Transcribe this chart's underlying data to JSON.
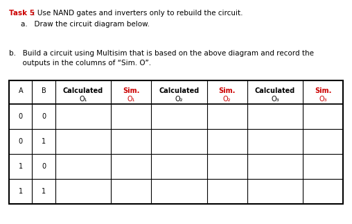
{
  "title_task": "Task 5",
  "title_rest": ": Use NAND gates and inverters only to rebuild the circuit.",
  "sub_a": "a.   Draw the circuit diagram below.",
  "sub_b_line1": "b.   Build a circuit using Multisim that is based on the above diagram and record the",
  "sub_b_line2": "      outputs in the columns of “Sim. O”.",
  "col_headers_line1": [
    "A",
    "B",
    "Calculated",
    "Sim.",
    "Calculated",
    "Sim.",
    "Calculated",
    "Sim."
  ],
  "col_headers_line2": [
    "",
    "",
    "O₁",
    "O₁",
    "O₂",
    "O₂",
    "O₃",
    "O₃"
  ],
  "rows": [
    [
      "0",
      "0",
      "",
      "",
      "",
      "",
      "",
      ""
    ],
    [
      "0",
      "1",
      "",
      "",
      "",
      "",
      "",
      ""
    ],
    [
      "1",
      "0",
      "",
      "",
      "",
      "",
      "",
      ""
    ],
    [
      "1",
      "1",
      "",
      "",
      "",
      "",
      "",
      ""
    ]
  ],
  "red_color": "#cc0000",
  "black_color": "#000000",
  "bg_color": "#ffffff",
  "sim_col_indices": [
    3,
    5,
    7
  ],
  "calc_col_indices": [
    2,
    4,
    6
  ]
}
